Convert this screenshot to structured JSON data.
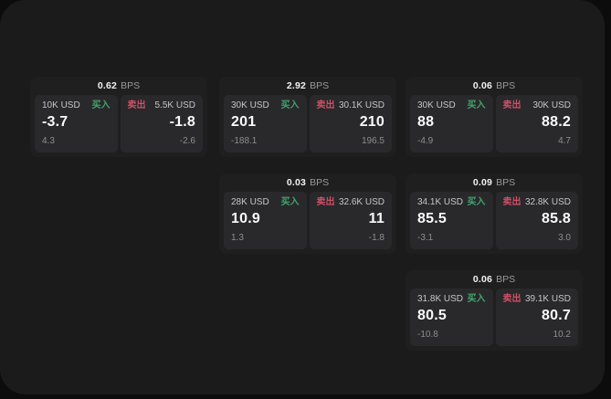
{
  "labels": {
    "bps": "BPS",
    "buy": "买入",
    "sell": "卖出"
  },
  "colors": {
    "panel_bg": "#1b1b1c",
    "card_bg": "#1f1f20",
    "subpanel_bg": "#29292b",
    "buy_green": "#42a46e",
    "sell_red": "#cf4f66"
  },
  "cards": [
    {
      "col": 0,
      "row": 0,
      "bps": "0.62",
      "buy": {
        "amount": "10K USD",
        "value": "-3.7",
        "delta": "4.3"
      },
      "sell": {
        "amount": "5.5K USD",
        "value": "-1.8",
        "delta": "-2.6"
      }
    },
    {
      "col": 1,
      "row": 0,
      "bps": "2.92",
      "buy": {
        "amount": "30K USD",
        "value": "201",
        "delta": "-188.1"
      },
      "sell": {
        "amount": "30.1K USD",
        "value": "210",
        "delta": "196.5"
      }
    },
    {
      "col": 2,
      "row": 0,
      "bps": "0.06",
      "buy": {
        "amount": "30K USD",
        "value": "88",
        "delta": "-4.9"
      },
      "sell": {
        "amount": "30K USD",
        "value": "88.2",
        "delta": "4.7"
      }
    },
    {
      "col": 1,
      "row": 1,
      "bps": "0.03",
      "buy": {
        "amount": "28K USD",
        "value": "10.9",
        "delta": "1.3"
      },
      "sell": {
        "amount": "32.6K USD",
        "value": "11",
        "delta": "-1.8"
      }
    },
    {
      "col": 2,
      "row": 1,
      "bps": "0.09",
      "buy": {
        "amount": "34.1K USD",
        "value": "85.5",
        "delta": "-3.1"
      },
      "sell": {
        "amount": "32.8K USD",
        "value": "85.8",
        "delta": "3.0"
      }
    },
    {
      "col": 2,
      "row": 2,
      "bps": "0.06",
      "buy": {
        "amount": "31.8K USD",
        "value": "80.5",
        "delta": "-10.8"
      },
      "sell": {
        "amount": "39.1K USD",
        "value": "80.7",
        "delta": "10.2"
      }
    }
  ]
}
